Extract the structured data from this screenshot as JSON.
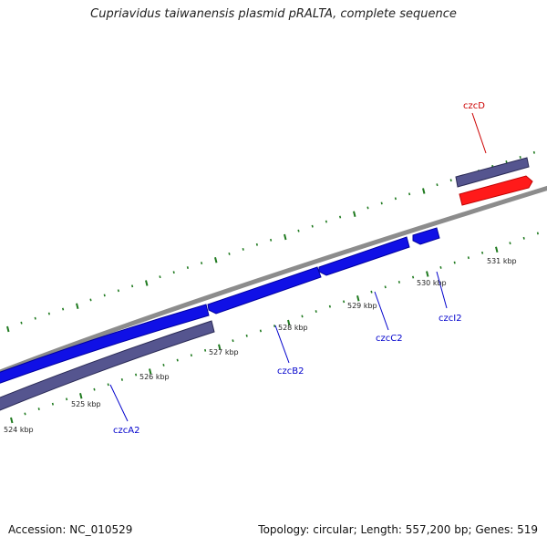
{
  "title": "Cupriavidus taiwanensis plasmid pRALTA, complete sequence",
  "accession": "Accession: NC_010529",
  "summary": "Topology: circular; Length: 557,200 bp; Genes: 519",
  "ticks": [
    "524 kbp",
    "525 kbp",
    "526 kbp",
    "527 kbp",
    "528 kbp",
    "529 kbp",
    "530 kbp",
    "531 kbp"
  ],
  "genes": [
    {
      "name": "czcA2",
      "color": "#0000cc"
    },
    {
      "name": "czcB2",
      "color": "#0000cc"
    },
    {
      "name": "czcC2",
      "color": "#0000cc"
    },
    {
      "name": "czcI2",
      "color": "#0000cc"
    },
    {
      "name": "czcD",
      "color": "#cc0000"
    }
  ],
  "colors": {
    "backbone": "#8c8c8c",
    "forward_cds": "#1010e6",
    "forward_cds_outline": "#0000a0",
    "reverse_cds": "#55558f",
    "highlight_cds": "#ff1a1a",
    "tick": "#1f7a1f"
  }
}
